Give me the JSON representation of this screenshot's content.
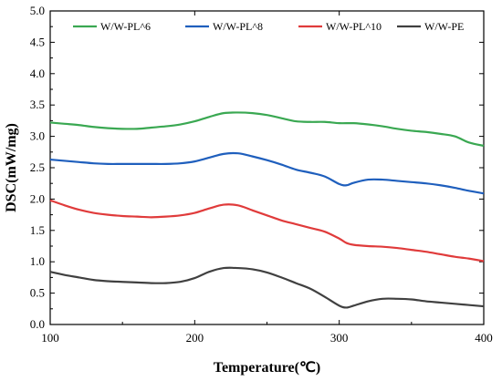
{
  "chart_data": {
    "type": "line",
    "xlabel": "Temperature(℃)",
    "ylabel": "DSC(mW/mg)",
    "xlim": [
      100,
      400
    ],
    "ylim": [
      0.0,
      5.0
    ],
    "xticks": [
      "100",
      "200",
      "300",
      "400"
    ],
    "yticks": [
      "0.0",
      "0.5",
      "1.0",
      "1.5",
      "2.0",
      "2.5",
      "3.0",
      "3.5",
      "4.0",
      "4.5",
      "5.0"
    ],
    "legend_position": "top",
    "grid": false,
    "series": [
      {
        "name": "W/W-PL^6",
        "color": "#3aa852",
        "x": [
          100,
          110,
          120,
          130,
          140,
          150,
          160,
          170,
          180,
          190,
          200,
          210,
          220,
          230,
          240,
          250,
          260,
          270,
          280,
          290,
          300,
          310,
          320,
          330,
          340,
          350,
          360,
          370,
          380,
          390,
          400
        ],
        "y": [
          3.22,
          3.2,
          3.18,
          3.15,
          3.13,
          3.12,
          3.12,
          3.14,
          3.16,
          3.19,
          3.24,
          3.31,
          3.37,
          3.38,
          3.37,
          3.34,
          3.29,
          3.24,
          3.23,
          3.23,
          3.21,
          3.21,
          3.19,
          3.16,
          3.12,
          3.09,
          3.07,
          3.04,
          3.0,
          2.9,
          2.85
        ]
      },
      {
        "name": "W/W-PL^8",
        "color": "#1f5fbd",
        "x": [
          100,
          110,
          120,
          130,
          140,
          150,
          160,
          170,
          180,
          190,
          200,
          210,
          220,
          230,
          240,
          250,
          260,
          270,
          280,
          290,
          300,
          305,
          310,
          320,
          330,
          340,
          350,
          360,
          370,
          380,
          390,
          400
        ],
        "y": [
          2.63,
          2.61,
          2.59,
          2.57,
          2.56,
          2.56,
          2.56,
          2.56,
          2.56,
          2.57,
          2.6,
          2.66,
          2.72,
          2.73,
          2.68,
          2.62,
          2.55,
          2.47,
          2.42,
          2.36,
          2.24,
          2.22,
          2.26,
          2.31,
          2.31,
          2.29,
          2.27,
          2.25,
          2.22,
          2.18,
          2.13,
          2.09
        ]
      },
      {
        "name": "W/W-PL^10",
        "color": "#e03b3b",
        "x": [
          100,
          110,
          120,
          130,
          140,
          150,
          160,
          170,
          180,
          190,
          200,
          210,
          220,
          230,
          240,
          250,
          260,
          270,
          280,
          290,
          300,
          305,
          310,
          320,
          330,
          340,
          350,
          360,
          370,
          380,
          390,
          400
        ],
        "y": [
          1.98,
          1.9,
          1.83,
          1.78,
          1.75,
          1.73,
          1.72,
          1.71,
          1.72,
          1.74,
          1.78,
          1.85,
          1.91,
          1.9,
          1.82,
          1.74,
          1.66,
          1.6,
          1.54,
          1.48,
          1.37,
          1.3,
          1.27,
          1.25,
          1.24,
          1.22,
          1.19,
          1.16,
          1.12,
          1.08,
          1.05,
          1.01
        ]
      },
      {
        "name": "W/W-PE",
        "color": "#404040",
        "x": [
          100,
          110,
          120,
          130,
          140,
          150,
          160,
          170,
          180,
          190,
          200,
          210,
          220,
          230,
          240,
          250,
          260,
          270,
          280,
          290,
          300,
          305,
          310,
          320,
          330,
          340,
          350,
          360,
          370,
          380,
          390,
          400
        ],
        "y": [
          0.84,
          0.79,
          0.75,
          0.71,
          0.69,
          0.68,
          0.67,
          0.66,
          0.66,
          0.68,
          0.74,
          0.84,
          0.9,
          0.9,
          0.88,
          0.83,
          0.75,
          0.66,
          0.57,
          0.44,
          0.3,
          0.27,
          0.3,
          0.37,
          0.41,
          0.41,
          0.4,
          0.37,
          0.35,
          0.33,
          0.31,
          0.29
        ]
      }
    ]
  }
}
